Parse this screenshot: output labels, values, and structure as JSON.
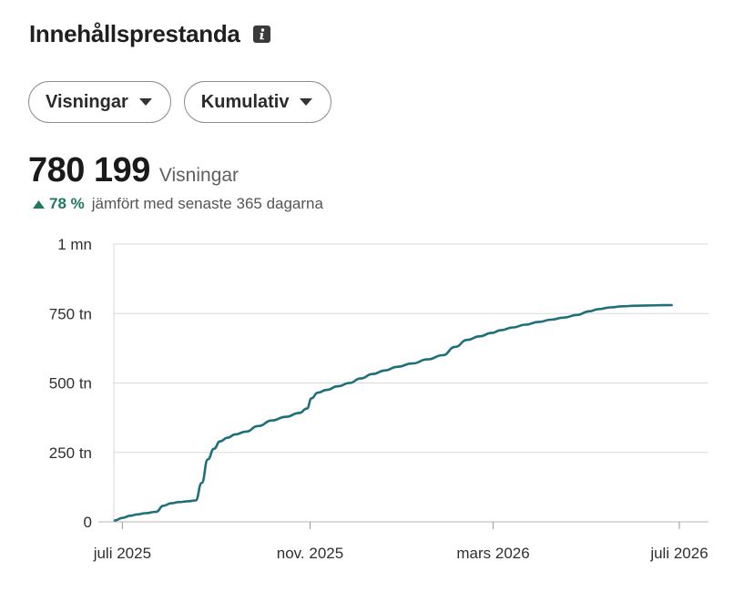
{
  "header": {
    "title": "Innehållsprestanda",
    "info_icon": "info-icon"
  },
  "filters": [
    {
      "label": "Visningar",
      "icon": "caret-down-icon"
    },
    {
      "label": "Kumulativ",
      "icon": "caret-down-icon"
    }
  ],
  "summary": {
    "value": "780 199",
    "metric": "Visningar",
    "change_pct": "78 %",
    "change_text": "jämfört med senaste 365 dagarna",
    "change_icon": "triangle-up-icon"
  },
  "colors": {
    "line": "#1f6f7a",
    "grid": "#d9d9d9",
    "positive": "#1f7a5a"
  },
  "chart_data": {
    "type": "line",
    "ylim": [
      0,
      1000000
    ],
    "y_ticks": [
      {
        "value": 0,
        "label": "0"
      },
      {
        "value": 250000,
        "label": "250 tn"
      },
      {
        "value": 500000,
        "label": "500 tn"
      },
      {
        "value": 750000,
        "label": "750 tn"
      },
      {
        "value": 1000000,
        "label": "1 mn"
      }
    ],
    "x_ticks": [
      {
        "value": "2025-07-01",
        "label": "juli 2025"
      },
      {
        "value": "2025-11-01",
        "label": "nov. 2025"
      },
      {
        "value": "2026-03-01",
        "label": "mars 2026"
      },
      {
        "value": "2026-07-01",
        "label": "juli 2026"
      }
    ],
    "xlim": [
      "2025-06-26",
      "2026-07-01"
    ],
    "series": [
      {
        "x": [
          "2025-06-26",
          "2025-07-01",
          "2025-07-06",
          "2025-07-11",
          "2025-07-16",
          "2025-07-23",
          "2025-07-28",
          "2025-08-02",
          "2025-08-07",
          "2025-08-13",
          "2025-08-18",
          "2025-08-22",
          "2025-08-26",
          "2025-08-30",
          "2025-09-03",
          "2025-09-08",
          "2025-09-13",
          "2025-09-20",
          "2025-09-28",
          "2025-10-07",
          "2025-10-16",
          "2025-10-25",
          "2025-10-30",
          "2025-11-02",
          "2025-11-06",
          "2025-11-12",
          "2025-11-19",
          "2025-11-27",
          "2025-12-04",
          "2025-12-12",
          "2025-12-20",
          "2025-12-28",
          "2026-01-07",
          "2026-01-17",
          "2026-01-27",
          "2026-02-04",
          "2026-02-12",
          "2026-02-20",
          "2026-02-28",
          "2026-03-06",
          "2026-03-14",
          "2026-03-22",
          "2026-03-31",
          "2026-04-08",
          "2026-04-16",
          "2026-04-25",
          "2026-05-03",
          "2026-05-09",
          "2026-05-17",
          "2026-05-25",
          "2026-06-02",
          "2026-06-10",
          "2026-06-20",
          "2026-06-26"
        ],
        "y": [
          5000,
          14000,
          22000,
          27000,
          31000,
          36000,
          58000,
          67000,
          71000,
          74000,
          77000,
          140000,
          225000,
          263000,
          290000,
          303000,
          315000,
          325000,
          345000,
          365000,
          378000,
          392000,
          408000,
          445000,
          465000,
          475000,
          488000,
          500000,
          516000,
          532000,
          545000,
          558000,
          570000,
          585000,
          600000,
          630000,
          655000,
          668000,
          680000,
          690000,
          700000,
          710000,
          720000,
          728000,
          735000,
          745000,
          758000,
          766000,
          772000,
          776000,
          778000,
          779000,
          780000,
          780199
        ]
      }
    ]
  }
}
